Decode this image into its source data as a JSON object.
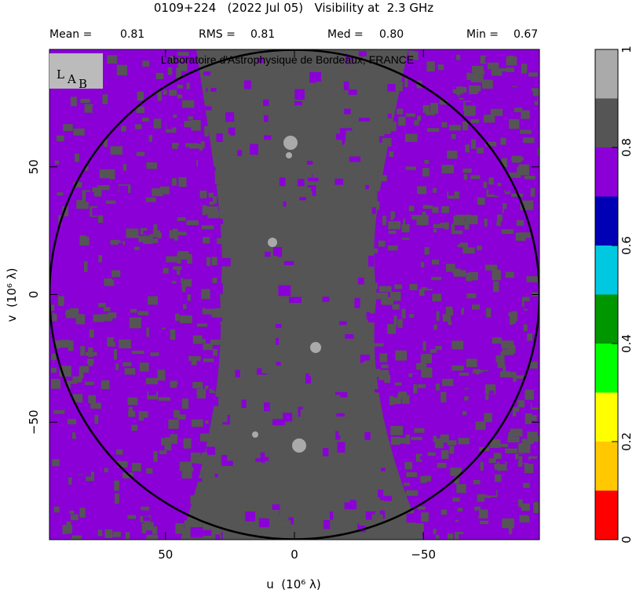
{
  "chart_data": {
    "type": "uvmap",
    "title": "0109+224   (2022 Jul 05)   Visibility at  2.3 GHz",
    "stats": [
      {
        "label": "Mean =",
        "value": "0.81"
      },
      {
        "label": "RMS =",
        "value": "0.81"
      },
      {
        "label": "Med =",
        "value": "0.80"
      },
      {
        "label": "Min =",
        "value": "0.67"
      }
    ],
    "credit": "Laboratoire d'Astrophysique de Bordeaux, FRANCE",
    "logo": [
      "L",
      "A",
      "B"
    ],
    "xlabel": "u  (10⁶ λ)",
    "ylabel": "v  (10⁶ λ)",
    "xlim": [
      95,
      -95
    ],
    "ylim": [
      -96,
      96
    ],
    "xticks": [
      50,
      0,
      {
        "value": -50,
        "label": "−50"
      }
    ],
    "yticks": [
      50,
      0,
      {
        "value": -50,
        "label": "−50"
      }
    ],
    "colors": {
      "map_high": "#8a00d6",
      "map_mid": "#555555",
      "map_light": "#aaaaaa",
      "circle": "#000000"
    },
    "colorbar": {
      "lim": [
        0,
        1
      ],
      "ticks": [
        0,
        0.2,
        0.4,
        0.6,
        0.8,
        1
      ],
      "colors": [
        "#ff0000",
        "#ffc800",
        "#ffff00",
        "#00ff00",
        "#009600",
        "#00c8e0",
        "#0000b4",
        "#8a00d6",
        "#555555",
        "#aaaaaa"
      ]
    }
  }
}
